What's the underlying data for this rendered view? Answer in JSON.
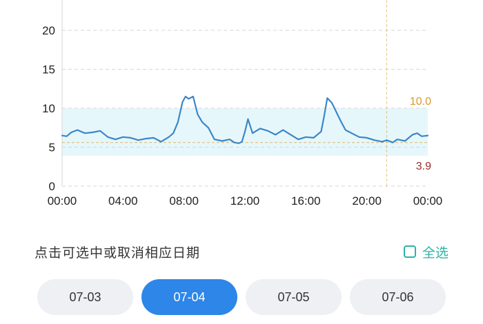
{
  "chart_data": {
    "type": "line",
    "x_unit": "hours",
    "xlim": [
      0,
      24
    ],
    "ylim": [
      0,
      22
    ],
    "y_ticks": [
      "0",
      "5",
      "10",
      "15",
      "20"
    ],
    "x_tick_labels": [
      "00:00",
      "04:00",
      "08:00",
      "12:00",
      "16:00",
      "20:00",
      "00:00"
    ],
    "target_range": {
      "low": 3.9,
      "high": 10.0
    },
    "ref_high_label": "10.0",
    "ref_low_label": "3.9",
    "cursor_x": 21.3,
    "colors": {
      "line": "#3a86c8",
      "band": "#e6f7fb",
      "high_ref": "#d99a2b",
      "low_ref": "#9b2d2d"
    },
    "series": [
      {
        "x": [
          0,
          0.3,
          0.6,
          1,
          1.5,
          2,
          2.5,
          3,
          3.5,
          4,
          4.5,
          5,
          5.5,
          6,
          6.5,
          7,
          7.3,
          7.6,
          7.9,
          8.1,
          8.3,
          8.6,
          8.9,
          9.2,
          9.6,
          10,
          10.5,
          11,
          11.3,
          11.6,
          11.8,
          12,
          12.2,
          12.5,
          13,
          13.5,
          14,
          14.5,
          15,
          15.5,
          16,
          16.5,
          17,
          17.2,
          17.4,
          17.7,
          18,
          18.3,
          18.6,
          19,
          19.5,
          20,
          20.5,
          21,
          21.3,
          21.7,
          22,
          22.5,
          23,
          23.3,
          23.6,
          24
        ],
        "y": [
          6.5,
          6.4,
          6.9,
          7.2,
          6.8,
          6.9,
          7.1,
          6.3,
          6.0,
          6.3,
          6.2,
          5.9,
          6.1,
          6.2,
          5.7,
          6.3,
          6.8,
          8.2,
          10.8,
          11.5,
          11.2,
          11.5,
          9.2,
          8.2,
          7.5,
          6.0,
          5.8,
          6.0,
          5.6,
          5.5,
          5.7,
          7.0,
          8.6,
          6.8,
          7.4,
          7.1,
          6.6,
          7.2,
          6.6,
          6.0,
          6.3,
          6.2,
          7.0,
          9.0,
          11.3,
          10.7,
          9.5,
          8.3,
          7.2,
          6.8,
          6.3,
          6.2,
          5.9,
          5.7,
          5.9,
          5.6,
          6.0,
          5.8,
          6.6,
          6.8,
          6.4,
          6.5
        ]
      }
    ]
  },
  "controls": {
    "hint": "点击可选中或取消相应日期",
    "select_all_label": "全选"
  },
  "dates": [
    "07-03",
    "07-04",
    "07-05",
    "07-06"
  ],
  "selected_date_index": 1
}
